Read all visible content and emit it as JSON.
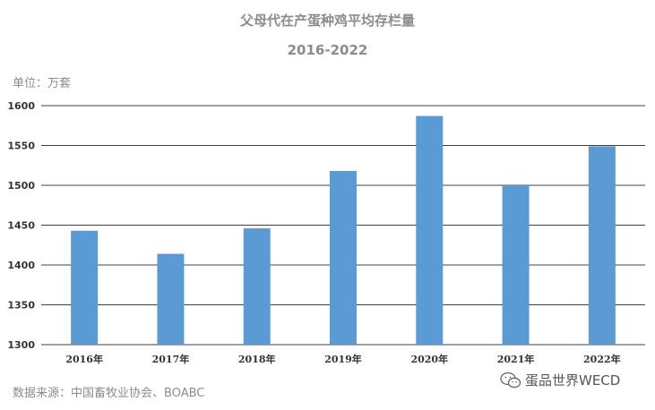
{
  "chart_data": {
    "type": "bar",
    "title": "父母代在产蛋种鸡平均存栏量",
    "subtitle": "2016-2022",
    "unit_label": "单位：万套",
    "source": "数据来源：中国畜牧业协会、BOABC",
    "categories": [
      "2016年",
      "2017年",
      "2018年",
      "2019年",
      "2020年",
      "2021年",
      "2022年"
    ],
    "values": [
      1443,
      1414,
      1446,
      1518,
      1587,
      1500,
      1549
    ],
    "ylim": [
      1300,
      1600
    ],
    "yticks": [
      1300,
      1350,
      1400,
      1450,
      1500,
      1550,
      1600
    ],
    "bar_color": "#5b9bd5",
    "grid": true
  },
  "watermark": {
    "text": "蛋品世界WECD",
    "icon": "wechat-icon"
  }
}
